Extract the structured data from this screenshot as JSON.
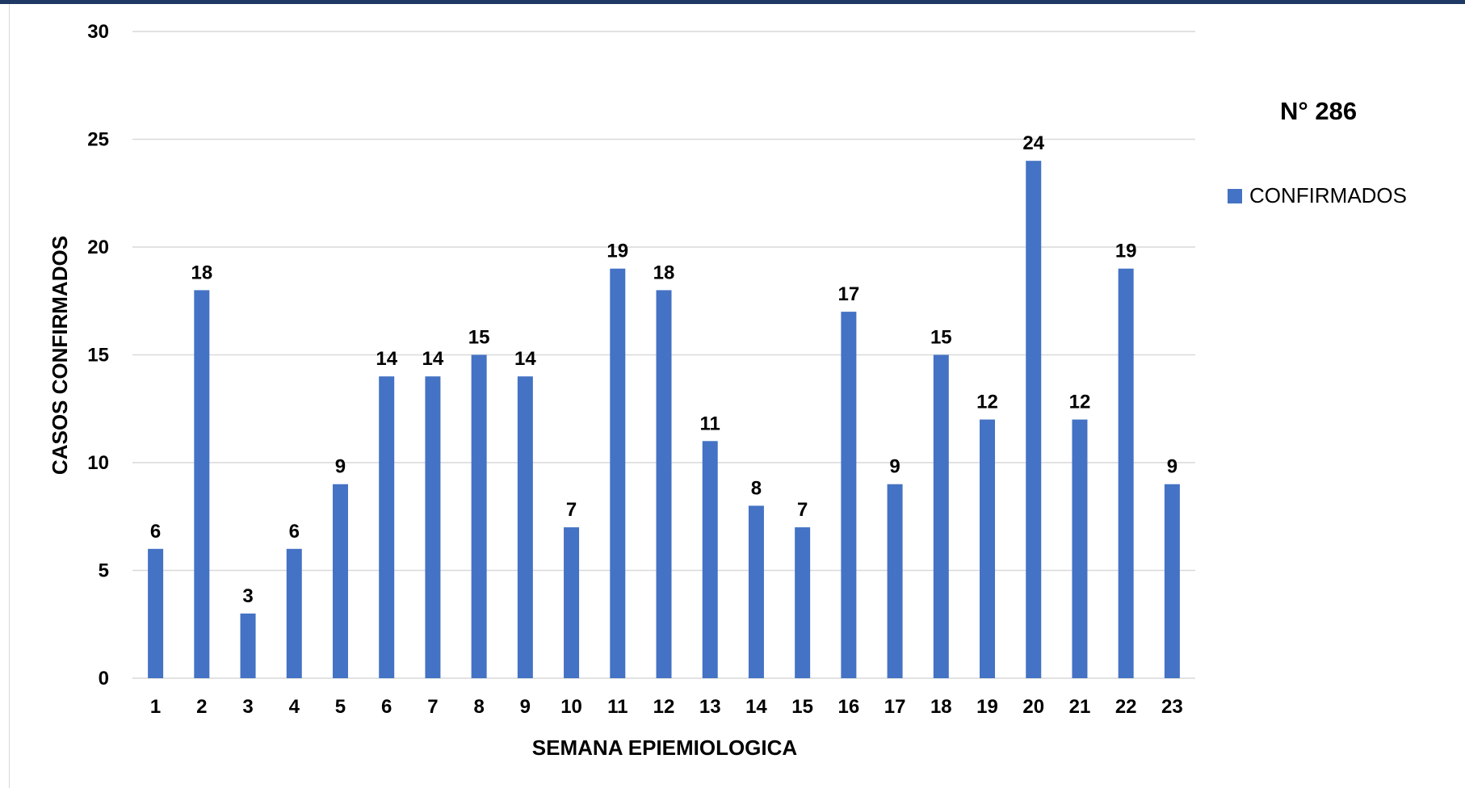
{
  "chart_data": {
    "type": "bar",
    "title": "",
    "xlabel": "SEMANA EPIEMIOLOGICA",
    "ylabel": "CASOS CONFIRMADOS",
    "ylim": [
      0,
      30
    ],
    "yticks": [
      0,
      5,
      10,
      15,
      20,
      25,
      30
    ],
    "categories": [
      "1",
      "2",
      "3",
      "4",
      "5",
      "6",
      "7",
      "8",
      "9",
      "10",
      "11",
      "12",
      "13",
      "14",
      "15",
      "16",
      "17",
      "18",
      "19",
      "20",
      "21",
      "22",
      "23"
    ],
    "series": [
      {
        "name": "CONFIRMADOS",
        "color": "#4472C4",
        "values": [
          6,
          18,
          3,
          6,
          9,
          14,
          14,
          15,
          14,
          7,
          19,
          18,
          11,
          8,
          7,
          17,
          9,
          15,
          12,
          24,
          12,
          19,
          9
        ]
      }
    ],
    "grid": true,
    "legend": "right",
    "data_labels": true
  },
  "annotation": {
    "total": "N° 286"
  },
  "colors": {
    "bar": "#4472C4",
    "gridline": "#d9d9d9",
    "header_bar": "#203864"
  }
}
